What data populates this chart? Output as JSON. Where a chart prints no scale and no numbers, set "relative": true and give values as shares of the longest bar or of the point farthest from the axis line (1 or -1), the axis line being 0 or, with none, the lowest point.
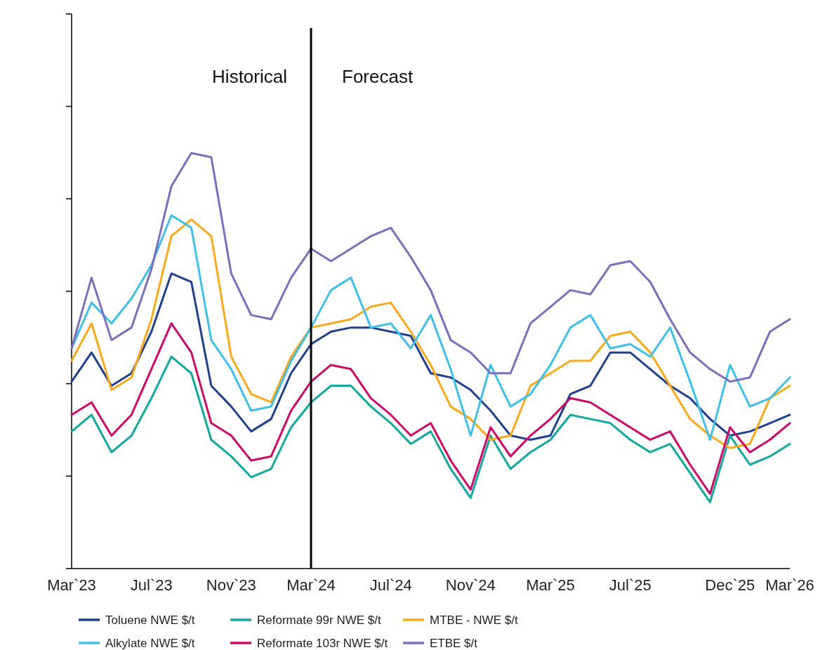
{
  "chart_data": {
    "type": "line",
    "relative": true,
    "grid": false,
    "legend": "bottom",
    "line_style": "solid",
    "marker": "none",
    "categories": [
      "Mar`23",
      null,
      null,
      null,
      "Jul`23",
      null,
      null,
      null,
      "Nov`23",
      null,
      null,
      null,
      "Mar`24",
      null,
      null,
      null,
      "Jul`24",
      null,
      null,
      null,
      "Nov`24",
      null,
      null,
      null,
      "Mar`25",
      null,
      null,
      null,
      "Jul`25",
      null,
      null,
      null,
      null,
      "Dec`25",
      null,
      null,
      "Mar`26"
    ],
    "series": [
      {
        "name": "Toluene NWE $/t",
        "color": "#1f3f8f",
        "values": [
          0.45,
          0.52,
          0.44,
          0.47,
          0.57,
          0.71,
          0.69,
          0.44,
          0.39,
          0.33,
          0.36,
          0.47,
          0.54,
          0.57,
          0.58,
          0.58,
          0.57,
          0.56,
          0.47,
          0.46,
          0.43,
          0.38,
          0.32,
          0.31,
          0.32,
          0.42,
          0.44,
          0.52,
          0.52,
          0.48,
          0.44,
          0.41,
          0.36,
          0.32,
          0.33,
          0.35,
          0.37
        ]
      },
      {
        "name": "Reformate 99r NWE $/t",
        "color": "#13a89e",
        "values": [
          0.33,
          0.37,
          0.28,
          0.32,
          0.41,
          0.51,
          0.47,
          0.31,
          0.27,
          0.22,
          0.24,
          0.34,
          0.4,
          0.44,
          0.44,
          0.39,
          0.35,
          0.3,
          0.33,
          0.24,
          0.17,
          0.32,
          0.24,
          0.28,
          0.31,
          0.37,
          0.36,
          0.35,
          0.31,
          0.28,
          0.3,
          0.23,
          0.16,
          0.32,
          0.25,
          0.27,
          0.3
        ]
      },
      {
        "name": "MTBE - NWE $/t",
        "color": "#f9a91b",
        "values": [
          0.5,
          0.59,
          0.43,
          0.46,
          0.6,
          0.8,
          0.84,
          0.8,
          0.51,
          0.42,
          0.4,
          0.51,
          0.58,
          0.59,
          0.6,
          0.63,
          0.64,
          0.57,
          0.49,
          0.39,
          0.36,
          0.31,
          0.32,
          0.44,
          0.47,
          0.5,
          0.5,
          0.56,
          0.57,
          0.52,
          0.44,
          0.36,
          0.32,
          0.29,
          0.3,
          0.41,
          0.44
        ]
      },
      {
        "name": "Alkylate NWE $/t",
        "color": "#3fc0ea",
        "values": [
          0.53,
          0.64,
          0.59,
          0.65,
          0.73,
          0.85,
          0.82,
          0.55,
          0.48,
          0.38,
          0.39,
          0.5,
          0.58,
          0.67,
          0.7,
          0.58,
          0.59,
          0.53,
          0.61,
          0.48,
          0.32,
          0.49,
          0.39,
          0.42,
          0.49,
          0.58,
          0.61,
          0.53,
          0.54,
          0.51,
          0.58,
          0.45,
          0.31,
          0.49,
          0.39,
          0.41,
          0.46
        ]
      },
      {
        "name": "Reformate 103r NWE $/t",
        "color": "#cc0a67",
        "values": [
          0.37,
          0.4,
          0.32,
          0.37,
          0.48,
          0.59,
          0.52,
          0.35,
          0.32,
          0.26,
          0.27,
          0.38,
          0.45,
          0.49,
          0.48,
          0.41,
          0.37,
          0.32,
          0.35,
          0.26,
          0.19,
          0.34,
          0.27,
          0.32,
          0.36,
          0.41,
          0.4,
          0.37,
          0.34,
          0.31,
          0.33,
          0.25,
          0.18,
          0.34,
          0.28,
          0.31,
          0.35
        ]
      },
      {
        "name": "ETBE $/t",
        "color": "#7a6fbd",
        "values": [
          0.53,
          0.7,
          0.55,
          0.58,
          0.72,
          0.92,
          1.0,
          0.99,
          0.71,
          0.61,
          0.6,
          0.7,
          0.77,
          0.74,
          0.77,
          0.8,
          0.82,
          0.75,
          0.67,
          0.55,
          0.52,
          0.47,
          0.47,
          0.59,
          0.63,
          0.67,
          0.66,
          0.73,
          0.74,
          0.69,
          0.6,
          0.52,
          0.48,
          0.45,
          0.46,
          0.57,
          0.6
        ]
      }
    ],
    "ref_lines": [
      {
        "axis": "x",
        "value": "Mar`24",
        "color": "#000000",
        "line_style": "solid"
      }
    ],
    "annotations": [
      "Historical",
      "Forecast"
    ]
  }
}
